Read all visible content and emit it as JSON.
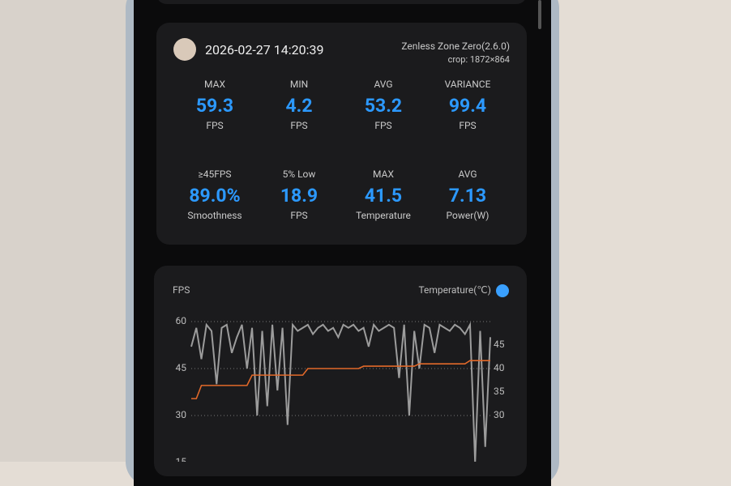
{
  "header": {
    "timestamp": "2026-02-27 14:20:39",
    "app": "Zenless Zone Zero(2.6.0)",
    "crop": "crop: 1872×864"
  },
  "stats": {
    "rows": [
      [
        {
          "label": "MAX",
          "value": "59.3",
          "unit": "FPS"
        },
        {
          "label": "MIN",
          "value": "4.2",
          "unit": "FPS"
        },
        {
          "label": "AVG",
          "value": "53.2",
          "unit": "FPS"
        },
        {
          "label": "VARIANCE",
          "value": "99.4",
          "unit": "FPS"
        }
      ],
      [
        {
          "label": "≥45FPS",
          "value": "89.0%",
          "unit": "Smoothness"
        },
        {
          "label": "5% Low",
          "value": "18.9",
          "unit": "FPS"
        },
        {
          "label": "MAX",
          "value": "41.5",
          "unit": "Temperature"
        },
        {
          "label": "AVG",
          "value": "7.13",
          "unit": "Power(W)"
        }
      ]
    ]
  },
  "chart_data": {
    "type": "line",
    "series": [
      {
        "name": "FPS",
        "color": "#9c9c9c",
        "values": [
          52,
          58,
          48,
          59,
          57,
          40,
          58,
          59,
          50,
          55,
          59,
          45,
          58,
          30,
          57,
          33,
          59,
          38,
          58,
          27,
          59,
          57,
          58,
          59,
          56,
          58,
          59,
          57,
          58,
          55,
          59,
          58,
          59,
          57,
          58,
          52,
          59,
          57,
          58,
          59,
          58,
          42,
          59,
          30,
          57,
          45,
          59,
          58,
          50,
          59,
          58,
          57,
          59,
          58,
          56,
          59,
          15,
          57,
          20,
          55
        ]
      },
      {
        "name": "Temperature(℃)",
        "color": "#e2692a",
        "axis": "y2",
        "values": [
          33.6,
          33.6,
          36.4,
          36.4,
          36.4,
          36.4,
          36.4,
          36.4,
          36.4,
          36.4,
          36.4,
          36.4,
          38.6,
          38.6,
          38.6,
          38.6,
          38.6,
          38.6,
          38.6,
          38.6,
          38.6,
          38.6,
          38.6,
          40,
          40,
          40,
          40,
          40,
          40,
          40,
          40,
          40,
          40,
          40,
          40.5,
          40.5,
          40.5,
          40.5,
          40.5,
          40.5,
          40.5,
          40.5,
          40.5,
          40.5,
          40.5,
          41,
          41,
          41,
          41,
          41,
          41,
          41,
          41,
          41,
          41,
          41.7,
          41.7,
          41.7,
          41.7,
          41.7
        ]
      }
    ],
    "ylim": [
      15,
      60
    ],
    "yticks": [
      15,
      30,
      45,
      60
    ],
    "y2lim": [
      20,
      50
    ],
    "y2ticks": [
      30,
      35,
      40,
      45
    ],
    "grid": true
  }
}
